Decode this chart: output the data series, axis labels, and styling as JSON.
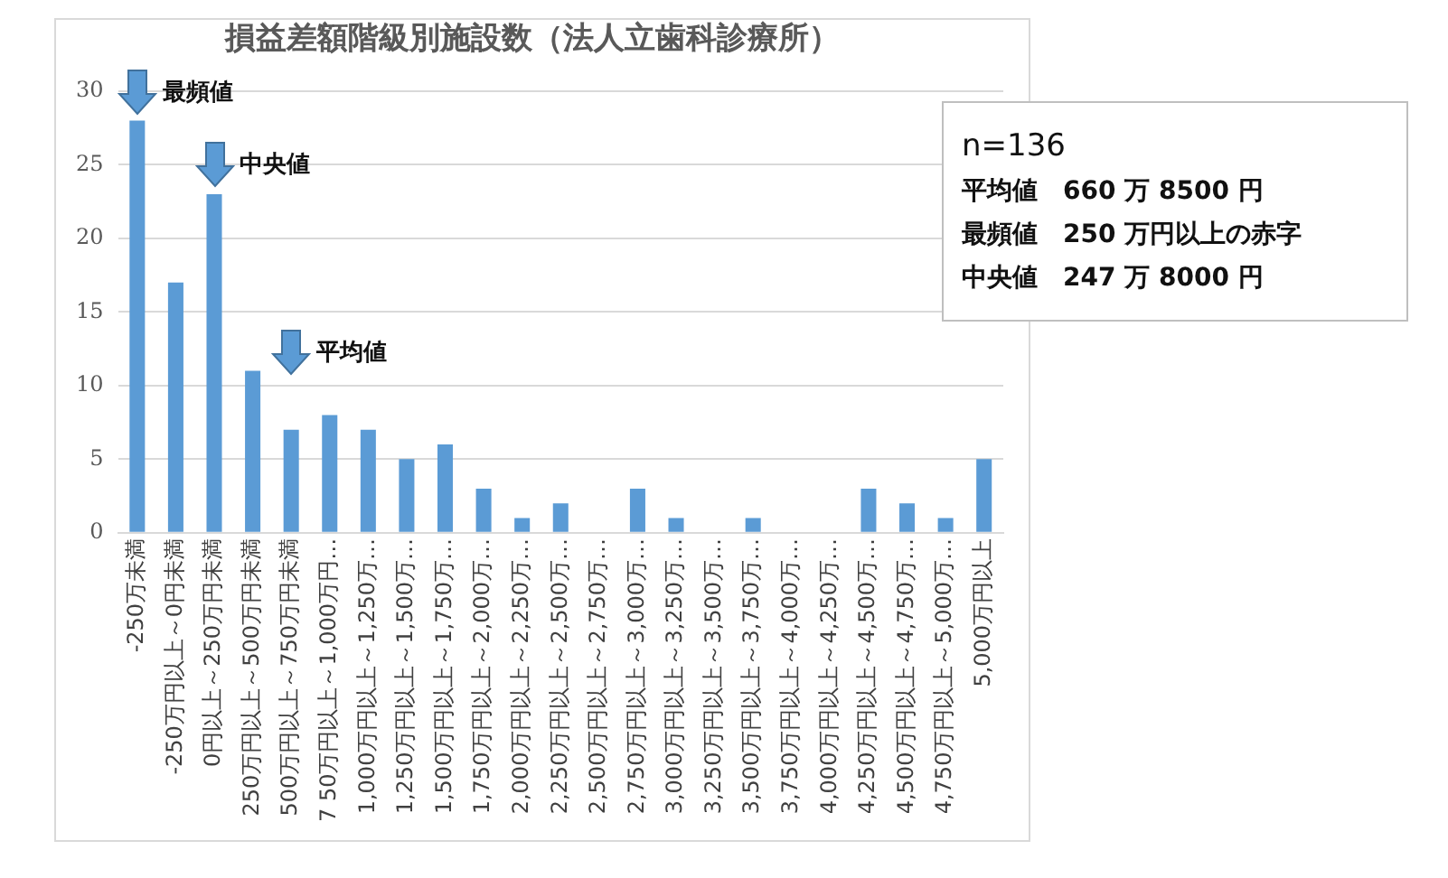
{
  "chart_data": {
    "type": "bar",
    "title": "損益差額階級別施設数（法人立歯科診療所）",
    "categories": [
      "-250万未満",
      "-250万円以上～0円未満",
      "0円以上～250万円未満",
      "250万円以上～500万円未満",
      "500万円以上～750万円未満",
      "7 50万円以上～1,000万円…",
      "1,000万円以上～1,250万…",
      "1,250万円以上～1,500万…",
      "1,500万円以上～1,750万…",
      "1,750万円以上～2,000万…",
      "2,000万円以上～2,250万…",
      "2,250万円以上～2,500万…",
      "2,500万円以上～2,750万…",
      "2,750万円以上～3,000万…",
      "3,000万円以上～3,250万…",
      "3,250万円以上～3,500万…",
      "3,500万円以上～3,750万…",
      "3,750万円以上～4,000万…",
      "4,000万円以上～4,250万…",
      "4,250万円以上～4,500万…",
      "4,500万円以上～4,750万…",
      "4,750万円以上～5,000万…",
      "5,000万円以上"
    ],
    "values": [
      28,
      17,
      23,
      11,
      7,
      8,
      7,
      5,
      6,
      3,
      1,
      2,
      0,
      3,
      1,
      0,
      1,
      0,
      0,
      3,
      2,
      1,
      5
    ],
    "color": "#5b9bd5",
    "ylim": [
      0,
      30
    ],
    "yticks": [
      0,
      5,
      10,
      15,
      20,
      25,
      30
    ],
    "grid": "y",
    "legend": false,
    "annotations": [
      {
        "text": "最頻値",
        "x": "-250万未満",
        "y": 28
      },
      {
        "text": "中央値",
        "x": "0円以上～250万円未満",
        "y": 23
      },
      {
        "text": "平均値",
        "x": "500万円以上～750万円未満",
        "y": 7
      },
      "n=136",
      "平均値　660 万 8500 円",
      "最頻値　250 万円以上の赤字",
      "中央値　247 万 8000 円"
    ]
  }
}
